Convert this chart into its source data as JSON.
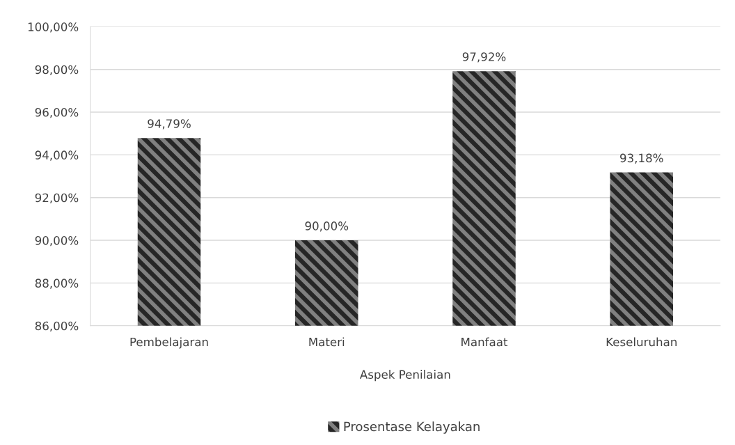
{
  "chart_data": {
    "type": "bar",
    "categories": [
      "Pembelajaran",
      "Materi",
      "Manfaat",
      "Keseluruhan"
    ],
    "xlabel": "Aspek Penilaian",
    "series": [
      {
        "name": "Prosentase Kelayakan",
        "color": "#262626",
        "values": [
          94.79,
          90.0,
          97.92,
          93.18
        ],
        "value_labels": [
          "94,79%",
          "90,00%",
          "97,92%",
          "93,18%"
        ]
      }
    ],
    "ylim": [
      86,
      100
    ],
    "yticks": [
      {
        "value": 86,
        "label": "86,00%"
      },
      {
        "value": 88,
        "label": "88,00%"
      },
      {
        "value": 90,
        "label": "90,00%"
      },
      {
        "value": 92,
        "label": "92,00%"
      },
      {
        "value": 94,
        "label": "94,00%"
      },
      {
        "value": 96,
        "label": "96,00%"
      },
      {
        "value": 98,
        "label": "98,00%"
      },
      {
        "value": 100,
        "label": "100,00%"
      }
    ],
    "grid": "y",
    "legend": "bottom"
  }
}
